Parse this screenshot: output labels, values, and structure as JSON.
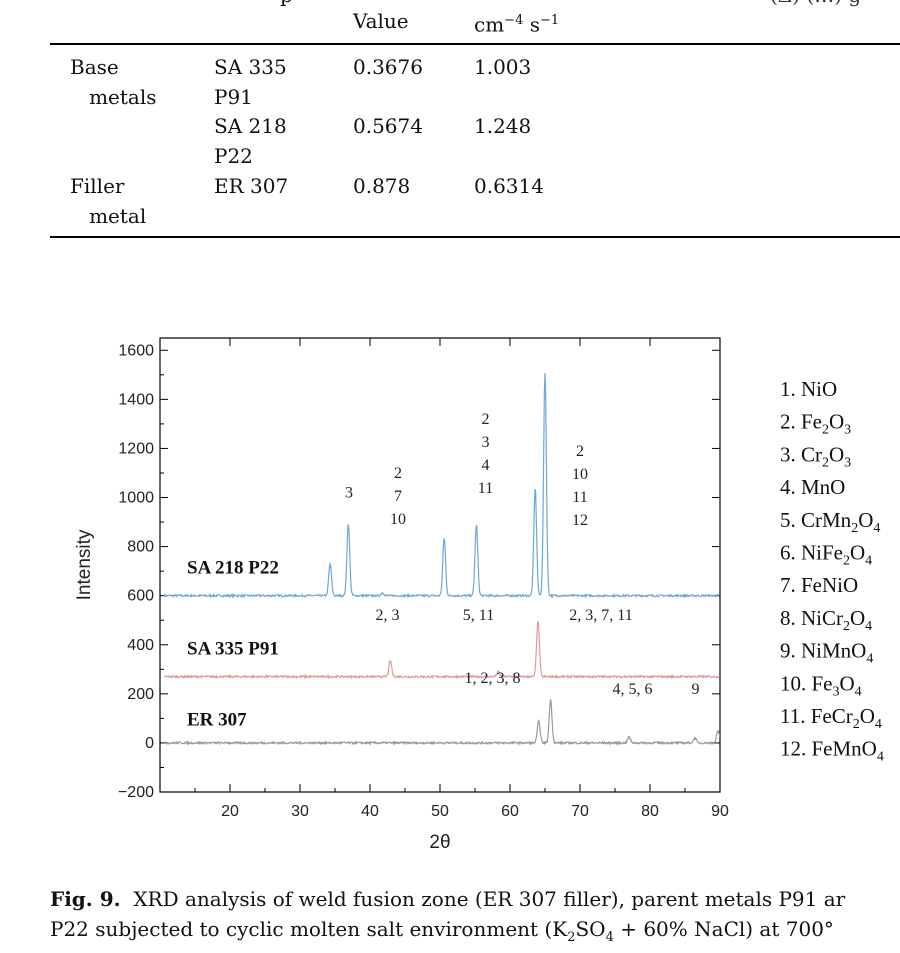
{
  "table": {
    "header_row1_fragment": "p",
    "header_col3": "Value",
    "header_col4": "cm−4 s−1",
    "header_right_fragment": "(Δ) (…) g",
    "rows": [
      {
        "group": "Base metals",
        "material": "SA 335 P91",
        "value": "0.3676",
        "rate": "1.003"
      },
      {
        "group": "",
        "material": "SA 218 P22",
        "value": "0.5674",
        "rate": "1.248"
      },
      {
        "group": "Filler metal",
        "material": "ER 307",
        "value": "0.878",
        "rate": "0.6314"
      }
    ]
  },
  "chart_data": {
    "type": "line",
    "xlabel": "2θ",
    "ylabel": "Intensity",
    "xlim": [
      10,
      90
    ],
    "ylim": [
      -200,
      1650
    ],
    "xticks": [
      20,
      30,
      40,
      50,
      60,
      70,
      80,
      90
    ],
    "yticks": [
      -200,
      0,
      200,
      400,
      600,
      800,
      1000,
      1200,
      1400,
      1600
    ],
    "series": [
      {
        "name": "SA 218 P22",
        "color": "#6fa8d8",
        "baseline": 600,
        "peaks": [
          [
            34.3,
            730
          ],
          [
            36.9,
            895
          ],
          [
            41.8,
            612
          ],
          [
            50.6,
            835
          ],
          [
            55.2,
            890
          ],
          [
            63.6,
            1040
          ],
          [
            65.0,
            1510
          ]
        ]
      },
      {
        "name": "SA 335 P91",
        "color": "#e09a9a",
        "baseline": 270,
        "peaks": [
          [
            42.9,
            335
          ],
          [
            58.3,
            290
          ],
          [
            64.0,
            500
          ]
        ]
      },
      {
        "name": "ER 307",
        "color": "#999999",
        "baseline": 0,
        "peaks": [
          [
            64.1,
            90
          ],
          [
            65.8,
            175
          ],
          [
            77.0,
            25
          ],
          [
            86.4,
            20
          ],
          [
            89.7,
            50
          ]
        ]
      }
    ],
    "peak_annotations": [
      {
        "x": 37,
        "y": 1000,
        "lines": [
          "3"
        ]
      },
      {
        "x": 44,
        "y": 1080,
        "lines": [
          "2",
          "7",
          "10"
        ]
      },
      {
        "x": 56.5,
        "y": 1300,
        "lines": [
          "2",
          "3",
          "4",
          "11"
        ]
      },
      {
        "x": 70,
        "y": 1170,
        "lines": [
          "2",
          "10",
          "11",
          "12"
        ]
      },
      {
        "x": 42.5,
        "y": 500,
        "lines": [
          "2, 3"
        ]
      },
      {
        "x": 55.5,
        "y": 500,
        "lines": [
          "5, 11"
        ]
      },
      {
        "x": 73,
        "y": 500,
        "lines": [
          "2, 3, 7, 11"
        ]
      },
      {
        "x": 57.5,
        "y": 245,
        "lines": [
          "1, 2, 3, 8"
        ]
      },
      {
        "x": 77.5,
        "y": 200,
        "lines": [
          "4, 5, 6"
        ]
      },
      {
        "x": 86.5,
        "y": 200,
        "lines": [
          "9"
        ]
      }
    ],
    "legend": [
      {
        "num": "1.",
        "parts": [
          [
            "NiO",
            ""
          ]
        ]
      },
      {
        "num": "2.",
        "parts": [
          [
            "Fe",
            "2"
          ],
          [
            "O",
            "3"
          ]
        ]
      },
      {
        "num": "3.",
        "parts": [
          [
            "Cr",
            "2"
          ],
          [
            "O",
            "3"
          ]
        ]
      },
      {
        "num": "4.",
        "parts": [
          [
            "MnO",
            ""
          ]
        ]
      },
      {
        "num": "5.",
        "parts": [
          [
            "CrMn",
            "2"
          ],
          [
            "O",
            "4"
          ]
        ]
      },
      {
        "num": "6.",
        "parts": [
          [
            "NiFe",
            "2"
          ],
          [
            "O",
            "4"
          ]
        ]
      },
      {
        "num": "7.",
        "parts": [
          [
            "FeNiO",
            ""
          ]
        ]
      },
      {
        "num": "8.",
        "parts": [
          [
            "NiCr",
            "2"
          ],
          [
            "O",
            "4"
          ]
        ]
      },
      {
        "num": "9.",
        "parts": [
          [
            "NiMnO",
            "4"
          ]
        ]
      },
      {
        "num": "10.",
        "parts": [
          [
            "Fe",
            "3"
          ],
          [
            "O",
            "4"
          ]
        ]
      },
      {
        "num": "11.",
        "parts": [
          [
            "FeCr",
            "2"
          ],
          [
            "O",
            "4"
          ]
        ]
      },
      {
        "num": "12.",
        "parts": [
          [
            "FeMnO",
            "4"
          ]
        ]
      }
    ]
  },
  "caption": {
    "label": "Fig. 9.",
    "line1": "XRD analysis of weld fusion zone (ER 307 filler), parent metals P91 ar",
    "line2": "P22 subjected to cyclic molten salt environment (K2SO4 + 60% NaCl) at 700°"
  }
}
